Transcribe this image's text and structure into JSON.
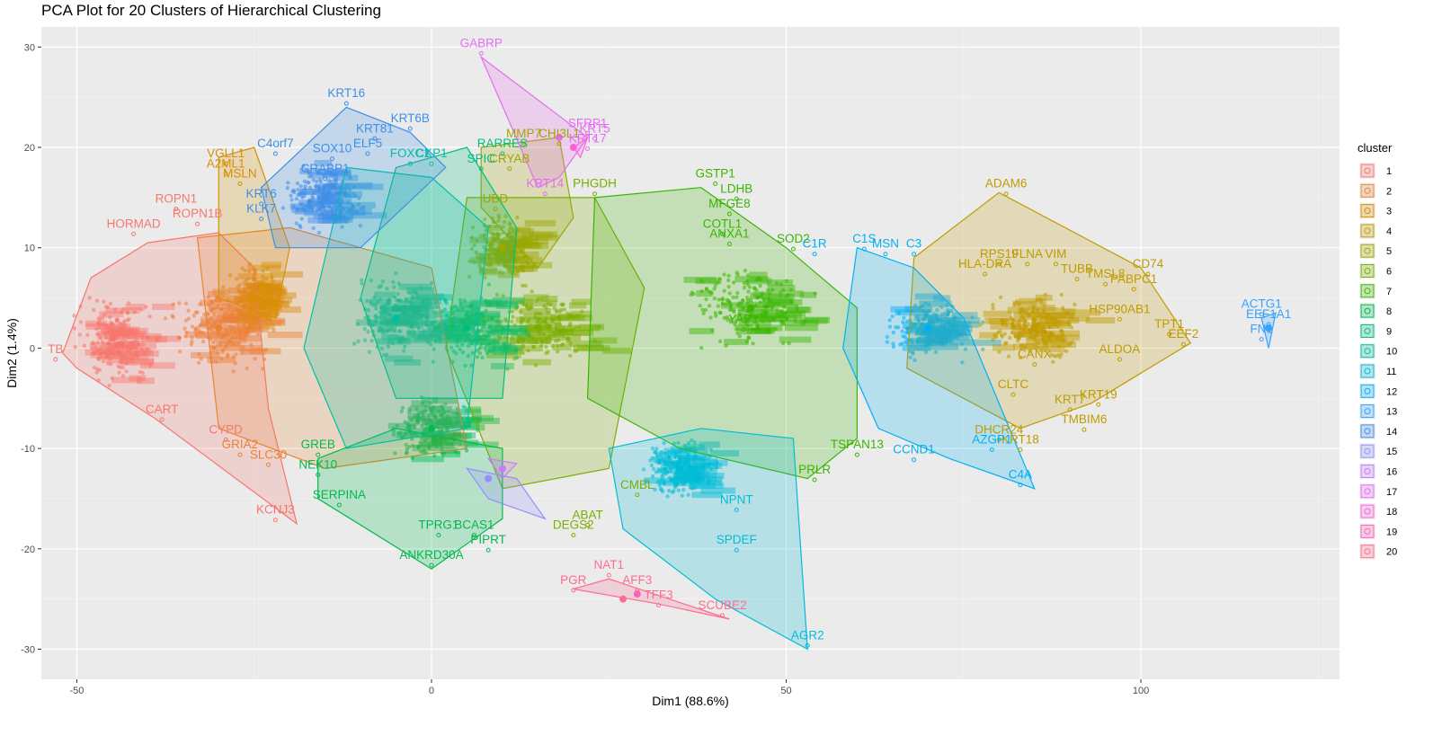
{
  "chart_data": {
    "type": "scatter",
    "title": "PCA Plot for 20 Clusters of Hierarchical Clustering",
    "xlabel": "Dim1 (88.6%)",
    "ylabel": "Dim2 (1.4%)",
    "xlim": [
      -55,
      128
    ],
    "ylim": [
      -33,
      32
    ],
    "xticks": [
      -50,
      0,
      50,
      100
    ],
    "yticks": [
      -30,
      -20,
      -10,
      0,
      10,
      20,
      30
    ],
    "grid": true,
    "legend_position": "right",
    "legend_title": "cluster",
    "clusters": [
      {
        "name": "1",
        "color": "#F8766D",
        "center": [
          -45,
          1
        ],
        "hull": [
          [
            -52,
            -0.5
          ],
          [
            -48,
            7
          ],
          [
            -40,
            10.5
          ],
          [
            -30,
            11.5
          ],
          [
            -25,
            8
          ],
          [
            -23,
            -6
          ],
          [
            -19,
            -17.5
          ],
          [
            -39,
            -7
          ],
          [
            -50,
            -2
          ]
        ],
        "labels": [
          {
            "text": "TB",
            "x": -53,
            "y": -0.5
          },
          {
            "text": "HORMAD",
            "x": -42,
            "y": 12
          },
          {
            "text": "ROPN1",
            "x": -36,
            "y": 14.5
          },
          {
            "text": "ROPN1B",
            "x": -33,
            "y": 13
          },
          {
            "text": "CART",
            "x": -38,
            "y": -6.5
          },
          {
            "text": "KCNJ3",
            "x": -22,
            "y": -16.5
          },
          {
            "text": "CYPD",
            "x": -29,
            "y": -8.5
          }
        ]
      },
      {
        "name": "2",
        "color": "#EA8331",
        "center": [
          -30,
          2
        ],
        "hull": [
          [
            -33,
            11
          ],
          [
            -20,
            12
          ],
          [
            0,
            8
          ],
          [
            5,
            -10
          ],
          [
            -15,
            -12
          ],
          [
            -30,
            -8
          ]
        ],
        "labels": [
          {
            "text": "SLC30",
            "x": -23,
            "y": -11
          },
          {
            "text": "GRIA2",
            "x": -27,
            "y": -10
          }
        ]
      },
      {
        "name": "3",
        "color": "#D89000",
        "center": [
          -25,
          5
        ],
        "hull": [
          [
            -30,
            19
          ],
          [
            -25,
            20
          ],
          [
            -20,
            10
          ],
          [
            -22,
            3
          ],
          [
            -30,
            5
          ]
        ],
        "labels": [
          {
            "text": "VGLL1",
            "x": -29,
            "y": 19
          },
          {
            "text": "A2ML1",
            "x": -29,
            "y": 18
          },
          {
            "text": "MSLN",
            "x": -27,
            "y": 17
          }
        ]
      },
      {
        "name": "4",
        "color": "#C09B00",
        "center": [
          85,
          2
        ],
        "hull": [
          [
            68,
            9
          ],
          [
            80,
            15.5
          ],
          [
            100,
            8
          ],
          [
            107,
            0.5
          ],
          [
            93,
            -5.5
          ],
          [
            83,
            -8
          ],
          [
            67,
            -2
          ]
        ],
        "labels": [
          {
            "text": "ADAM6",
            "x": 81,
            "y": 16
          },
          {
            "text": "RPS19",
            "x": 80,
            "y": 9
          },
          {
            "text": "FLNA",
            "x": 84,
            "y": 9
          },
          {
            "text": "VIM",
            "x": 88,
            "y": 9
          },
          {
            "text": "CD74",
            "x": 101,
            "y": 8
          },
          {
            "text": "TUBB",
            "x": 91,
            "y": 7.5
          },
          {
            "text": "TMSL8",
            "x": 95,
            "y": 7
          },
          {
            "text": "PABPC1",
            "x": 99,
            "y": 6.5
          },
          {
            "text": "HSP90AB1",
            "x": 97,
            "y": 3.5
          },
          {
            "text": "TPT1",
            "x": 104,
            "y": 2
          },
          {
            "text": "EEF2",
            "x": 106,
            "y": 1
          },
          {
            "text": "ALDOA",
            "x": 97,
            "y": -0.5
          },
          {
            "text": "CANX",
            "x": 85,
            "y": -1
          },
          {
            "text": "CLTC",
            "x": 82,
            "y": -4
          },
          {
            "text": "KRT19",
            "x": 94,
            "y": -5
          },
          {
            "text": "KRT7",
            "x": 90,
            "y": -5.5
          },
          {
            "text": "TMBIM6",
            "x": 92,
            "y": -7.5
          },
          {
            "text": "KRT18",
            "x": 83,
            "y": -9.5
          },
          {
            "text": "DHCR24",
            "x": 80,
            "y": -8.5
          },
          {
            "text": "HLA-DRA",
            "x": 78,
            "y": 8
          }
        ]
      },
      {
        "name": "5",
        "color": "#A3A500",
        "center": [
          10,
          10
        ],
        "hull": [
          [
            7,
            20
          ],
          [
            18,
            21
          ],
          [
            20,
            13
          ],
          [
            15,
            8
          ],
          [
            7,
            14
          ]
        ],
        "labels": [
          {
            "text": "CRYAB",
            "x": 11,
            "y": 18.5
          },
          {
            "text": "MMP7",
            "x": 13,
            "y": 21
          },
          {
            "text": "UBD",
            "x": 9,
            "y": 14.5
          },
          {
            "text": "CHI3L1",
            "x": 18,
            "y": 21
          }
        ]
      },
      {
        "name": "6",
        "color": "#7CAE00",
        "center": [
          15,
          2
        ],
        "hull": [
          [
            5,
            15
          ],
          [
            23,
            15
          ],
          [
            30,
            6
          ],
          [
            25,
            -12
          ],
          [
            10,
            -14
          ],
          [
            2,
            0
          ]
        ],
        "labels": [
          {
            "text": "PHGDH",
            "x": 23,
            "y": 16
          },
          {
            "text": "ABAT",
            "x": 22,
            "y": -17
          },
          {
            "text": "DEGS2",
            "x": 20,
            "y": -18
          },
          {
            "text": "CMBL",
            "x": 29,
            "y": -14
          }
        ]
      },
      {
        "name": "7",
        "color": "#39B600",
        "center": [
          45,
          4
        ],
        "hull": [
          [
            23,
            15
          ],
          [
            38,
            16
          ],
          [
            50,
            10
          ],
          [
            60,
            4
          ],
          [
            60,
            -9
          ],
          [
            53,
            -13
          ],
          [
            35,
            -10
          ],
          [
            22,
            -5
          ]
        ],
        "labels": [
          {
            "text": "GSTP1",
            "x": 40,
            "y": 17
          },
          {
            "text": "LDHB",
            "x": 43,
            "y": 15.5
          },
          {
            "text": "MFGE8",
            "x": 42,
            "y": 14
          },
          {
            "text": "COTL1",
            "x": 41,
            "y": 12
          },
          {
            "text": "ANXA1",
            "x": 42,
            "y": 11
          },
          {
            "text": "SOD2",
            "x": 51,
            "y": 10.5
          },
          {
            "text": "TSPAN13",
            "x": 60,
            "y": -10
          },
          {
            "text": "PRLR",
            "x": 54,
            "y": -12.5
          },
          {
            "text": "YAP1",
            "x": 44,
            "y": 2.5
          }
        ]
      },
      {
        "name": "8",
        "color": "#00BB4E",
        "center": [
          0,
          -8
        ],
        "hull": [
          [
            -16,
            -11
          ],
          [
            -5,
            -8
          ],
          [
            10,
            -10
          ],
          [
            10,
            -17
          ],
          [
            0,
            -22
          ],
          [
            -16,
            -15
          ]
        ],
        "labels": [
          {
            "text": "ANKRD30A",
            "x": 0,
            "y": -21
          },
          {
            "text": "TPRG1",
            "x": 1,
            "y": -18
          },
          {
            "text": "BCAS1",
            "x": 6,
            "y": -18
          },
          {
            "text": "PIPRT",
            "x": 8,
            "y": -19.5
          },
          {
            "text": "SERPINA",
            "x": -13,
            "y": -15
          },
          {
            "text": "NEK10",
            "x": -16,
            "y": -12
          },
          {
            "text": "GREB",
            "x": -16,
            "y": -10
          }
        ]
      },
      {
        "name": "9",
        "color": "#00BF7D",
        "center": [
          5,
          2
        ],
        "hull": [
          [
            -5,
            18
          ],
          [
            5,
            20
          ],
          [
            12,
            12
          ],
          [
            10,
            -5
          ],
          [
            -5,
            -5
          ],
          [
            -10,
            5
          ]
        ],
        "labels": [
          {
            "text": "RARRES",
            "x": 10,
            "y": 20
          },
          {
            "text": "SPIC",
            "x": 7,
            "y": 18.5
          }
        ]
      },
      {
        "name": "10",
        "color": "#00C1A3",
        "center": [
          -5,
          3
        ],
        "hull": [
          [
            -12,
            18
          ],
          [
            0,
            17
          ],
          [
            8,
            12
          ],
          [
            5,
            -8
          ],
          [
            -12,
            -10
          ],
          [
            -18,
            0
          ]
        ],
        "labels": [
          {
            "text": "FOXC1",
            "x": -3,
            "y": 19
          },
          {
            "text": "CKP1",
            "x": 0,
            "y": 19
          }
        ]
      },
      {
        "name": "11",
        "color": "#00BCD8",
        "center": [
          35,
          -12
        ],
        "hull": [
          [
            25,
            -10
          ],
          [
            38,
            -8
          ],
          [
            51,
            -9
          ],
          [
            53,
            -30
          ],
          [
            40,
            -25
          ],
          [
            27,
            -18
          ]
        ],
        "labels": [
          {
            "text": "NPNT",
            "x": 43,
            "y": -15.5
          },
          {
            "text": "SPDEF",
            "x": 43,
            "y": -19.5
          },
          {
            "text": "AGR2",
            "x": 53,
            "y": -29
          }
        ]
      },
      {
        "name": "12",
        "color": "#00B0F6",
        "center": [
          70,
          2
        ],
        "hull": [
          [
            60,
            10
          ],
          [
            68,
            8
          ],
          [
            75,
            3
          ],
          [
            85,
            -14
          ],
          [
            73,
            -11
          ],
          [
            63,
            -8
          ],
          [
            58,
            0
          ]
        ],
        "labels": [
          {
            "text": "C1S",
            "x": 61,
            "y": 10.5
          },
          {
            "text": "MSN",
            "x": 64,
            "y": 10
          },
          {
            "text": "C3",
            "x": 68,
            "y": 10
          },
          {
            "text": "C1R",
            "x": 54,
            "y": 10
          },
          {
            "text": "CCND1",
            "x": 68,
            "y": -10.5
          },
          {
            "text": "AZGP1",
            "x": 79,
            "y": -9.5
          },
          {
            "text": "C4A",
            "x": 83,
            "y": -13
          }
        ]
      },
      {
        "name": "13",
        "color": "#35A2FF",
        "center": [
          118,
          2
        ],
        "hull": [
          [
            117,
            3
          ],
          [
            119,
            3.5
          ],
          [
            118,
            0
          ]
        ],
        "labels": [
          {
            "text": "ACTG1",
            "x": 117,
            "y": 4
          },
          {
            "text": "EEF1A1",
            "x": 118,
            "y": 3
          },
          {
            "text": "FN1",
            "x": 117,
            "y": 1.5
          }
        ]
      },
      {
        "name": "14",
        "color": "#3D8FE8",
        "center": [
          -15,
          15
        ],
        "hull": [
          [
            -24,
            16
          ],
          [
            -12,
            24
          ],
          [
            -3,
            21.5
          ],
          [
            2,
            18
          ],
          [
            -10,
            10
          ],
          [
            -22,
            10
          ]
        ],
        "labels": [
          {
            "text": "KRT16",
            "x": -12,
            "y": 25
          },
          {
            "text": "KRT6B",
            "x": -3,
            "y": 22.5
          },
          {
            "text": "KRT81",
            "x": -8,
            "y": 21.5
          },
          {
            "text": "C4orf7",
            "x": -22,
            "y": 20
          },
          {
            "text": "SOX10",
            "x": -14,
            "y": 19.5
          },
          {
            "text": "ELF5",
            "x": -9,
            "y": 20
          },
          {
            "text": "KRT6",
            "x": -24,
            "y": 15
          },
          {
            "text": "KLK7",
            "x": -24,
            "y": 13.5
          },
          {
            "text": "CRABP1",
            "x": -15,
            "y": 17.5
          }
        ]
      },
      {
        "name": "15",
        "color": "#9590FF",
        "center": [
          8,
          -13
        ],
        "hull": [
          [
            5,
            -12
          ],
          [
            12,
            -13
          ],
          [
            16,
            -17
          ],
          [
            8,
            -15
          ]
        ],
        "labels": []
      },
      {
        "name": "16",
        "color": "#C77CFF",
        "center": [
          10,
          -12
        ],
        "hull": [
          [
            8,
            -11
          ],
          [
            12,
            -11.5
          ],
          [
            10,
            -13
          ]
        ],
        "labels": []
      },
      {
        "name": "17",
        "color": "#E76BF3",
        "center": [
          18,
          21
        ],
        "hull": [
          [
            7,
            29
          ],
          [
            22,
            21
          ],
          [
            18,
            17
          ],
          [
            15,
            16
          ]
        ],
        "labels": [
          {
            "text": "GABRP",
            "x": 7,
            "y": 30
          },
          {
            "text": "SFRP1",
            "x": 22,
            "y": 22
          },
          {
            "text": "KRT5",
            "x": 23,
            "y": 21.5
          },
          {
            "text": "KRT17",
            "x": 22,
            "y": 20.5
          },
          {
            "text": "KRT14",
            "x": 16,
            "y": 16
          }
        ]
      },
      {
        "name": "18",
        "color": "#FA62DB",
        "center": [
          20,
          20
        ],
        "hull": [
          [
            20,
            20
          ],
          [
            22,
            21
          ],
          [
            21,
            19
          ]
        ],
        "labels": []
      },
      {
        "name": "19",
        "color": "#FF62BC",
        "center": [
          29,
          -24.5
        ],
        "hull": [
          [
            29,
            -24.5
          ]
        ],
        "labels": []
      },
      {
        "name": "20",
        "color": "#FF6C91",
        "center": [
          27,
          -25
        ],
        "hull": [
          [
            20,
            -24
          ],
          [
            25,
            -23
          ],
          [
            42,
            -27
          ],
          [
            32,
            -25.5
          ]
        ],
        "labels": [
          {
            "text": "PGR",
            "x": 20,
            "y": -23.5
          },
          {
            "text": "NAT1",
            "x": 25,
            "y": -22
          },
          {
            "text": "AFF3",
            "x": 29,
            "y": -23.5
          },
          {
            "text": "TFF3",
            "x": 32,
            "y": -25
          },
          {
            "text": "SCUBE2",
            "x": 41,
            "y": -26
          }
        ]
      }
    ]
  }
}
